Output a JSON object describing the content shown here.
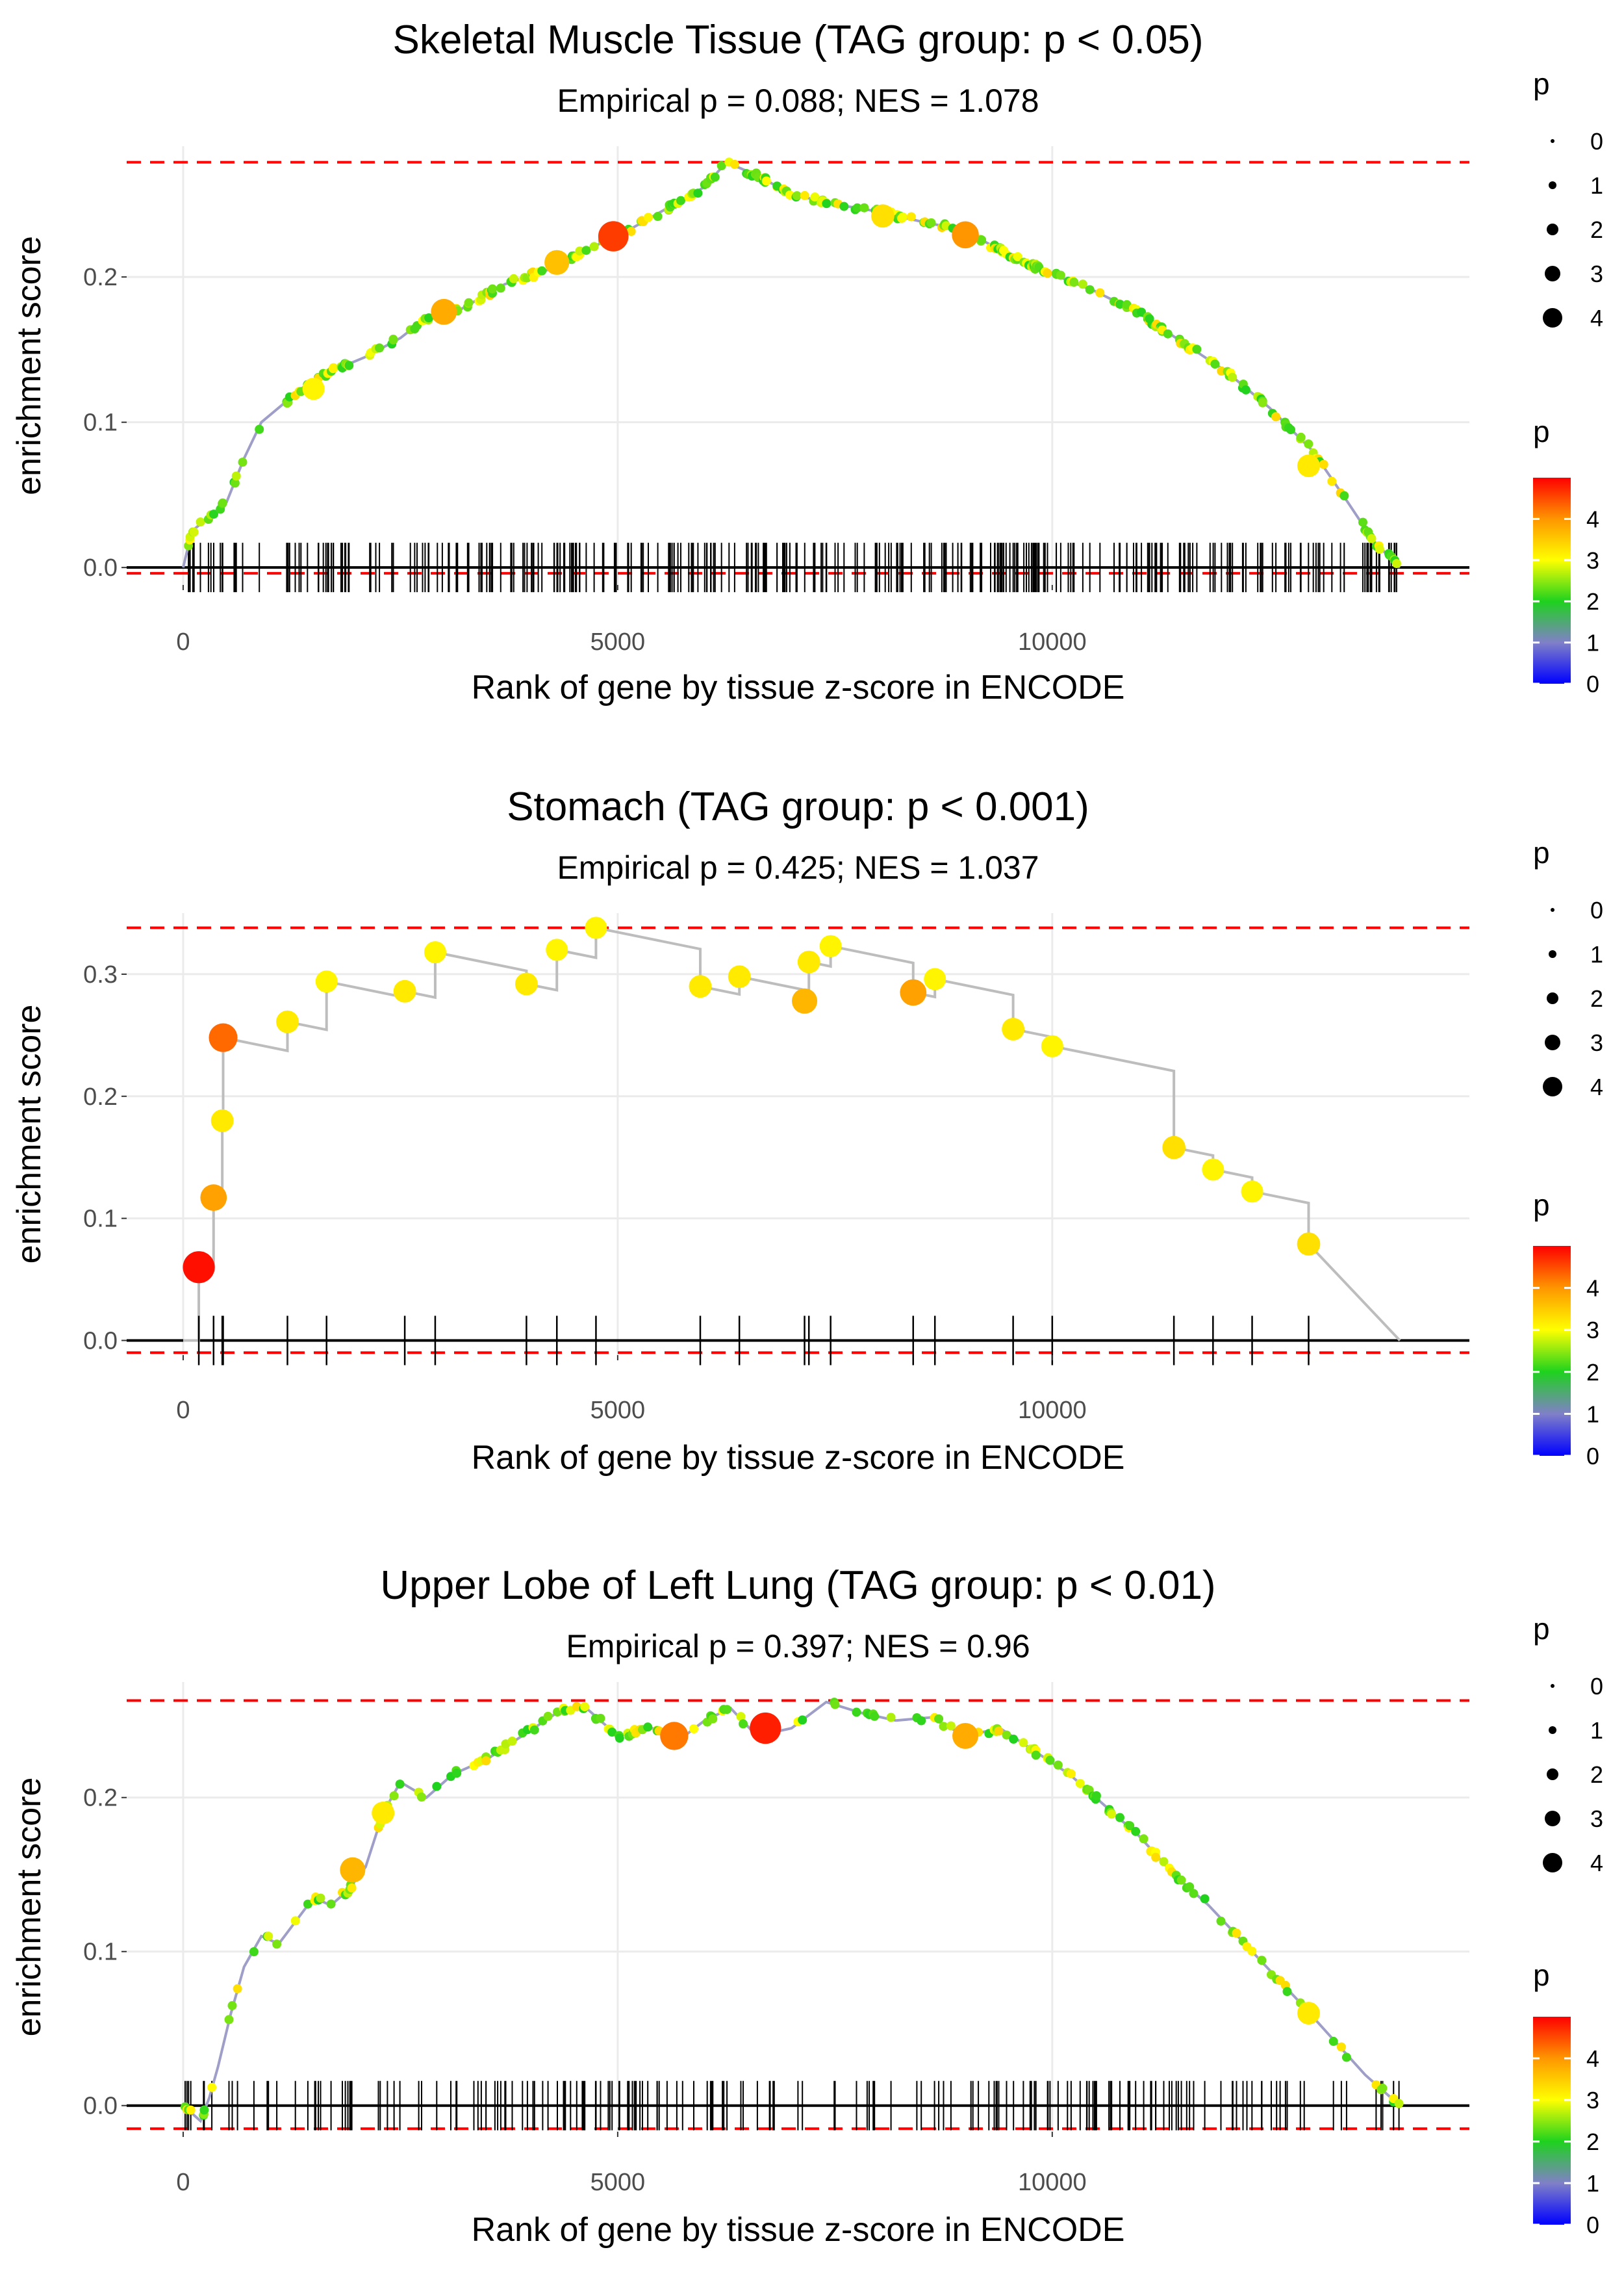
{
  "chart_data": [
    {
      "type": "line",
      "title": "Skeletal Muscle Tissue (TAG group: p < 0.05)",
      "subtitle": "Empirical p = 0.088; NES = 1.078",
      "xlabel": "Rank of gene by tissue z-score in ENCODE",
      "ylabel": "enrichment score",
      "xlim": [
        -650,
        14800
      ],
      "ylim": [
        -0.012,
        0.29
      ],
      "xticks": [
        0,
        5000,
        10000
      ],
      "xtick_labels": [
        "0",
        "5000",
        "10000"
      ],
      "yticks": [
        0.0,
        0.1,
        0.2
      ],
      "ytick_labels": [
        "0.0",
        "0.1",
        "0.2"
      ],
      "ref_lines": [
        0.279,
        -0.004
      ],
      "density": "dense",
      "curve": [
        [
          0,
          0
        ],
        [
          100,
          0.025
        ],
        [
          300,
          0.035
        ],
        [
          500,
          0.045
        ],
        [
          700,
          0.075
        ],
        [
          900,
          0.1
        ],
        [
          1100,
          0.11
        ],
        [
          1400,
          0.125
        ],
        [
          1700,
          0.135
        ],
        [
          2100,
          0.145
        ],
        [
          2500,
          0.158
        ],
        [
          2800,
          0.172
        ],
        [
          3200,
          0.178
        ],
        [
          3700,
          0.195
        ],
        [
          4200,
          0.205
        ],
        [
          4600,
          0.218
        ],
        [
          5000,
          0.228
        ],
        [
          5500,
          0.245
        ],
        [
          6000,
          0.262
        ],
        [
          6250,
          0.279
        ],
        [
          6600,
          0.27
        ],
        [
          7000,
          0.257
        ],
        [
          7500,
          0.25
        ],
        [
          8000,
          0.245
        ],
        [
          8500,
          0.238
        ],
        [
          9000,
          0.232
        ],
        [
          9500,
          0.215
        ],
        [
          10000,
          0.202
        ],
        [
          10500,
          0.19
        ],
        [
          11000,
          0.175
        ],
        [
          11500,
          0.155
        ],
        [
          12000,
          0.135
        ],
        [
          12500,
          0.11
        ],
        [
          13000,
          0.08
        ],
        [
          13400,
          0.045
        ],
        [
          13700,
          0.018
        ],
        [
          14000,
          0.0
        ]
      ],
      "highlights": [
        {
          "x": 4950,
          "y": 0.228,
          "p": 4.6
        },
        {
          "x": 9000,
          "y": 0.229,
          "p": 4.0
        },
        {
          "x": 3000,
          "y": 0.176,
          "p": 3.8
        },
        {
          "x": 4300,
          "y": 0.21,
          "p": 3.6
        },
        {
          "x": 8050,
          "y": 0.242,
          "p": 3.3
        },
        {
          "x": 1500,
          "y": 0.123,
          "p": 3.1
        },
        {
          "x": 12950,
          "y": 0.07,
          "p": 3.2
        }
      ],
      "legend_size_title": "p",
      "legend_size_labels": [
        "0",
        "1",
        "2",
        "3",
        "4"
      ],
      "legend_color_title": "p",
      "legend_color_labels": [
        "4",
        "3",
        "2",
        "1",
        "0"
      ]
    },
    {
      "type": "line",
      "title": "Stomach (TAG group: p < 0.001)",
      "subtitle": "Empirical p = 0.425; NES = 1.037",
      "xlabel": "Rank of gene by tissue z-score in ENCODE",
      "ylabel": "enrichment score",
      "xlim": [
        -650,
        14800
      ],
      "ylim": [
        -0.012,
        0.35
      ],
      "xticks": [
        0,
        5000,
        10000
      ],
      "xtick_labels": [
        "0",
        "5000",
        "10000"
      ],
      "yticks": [
        0.0,
        0.1,
        0.2,
        0.3
      ],
      "ytick_labels": [
        "0.0",
        "0.1",
        "0.2",
        "0.3"
      ],
      "ref_lines": [
        0.338,
        -0.01
      ],
      "density": "sparse",
      "points": [
        {
          "x": 180,
          "y": 0.06,
          "p": 4.9
        },
        {
          "x": 350,
          "y": 0.117,
          "p": 3.9
        },
        {
          "x": 450,
          "y": 0.18,
          "p": 3.2
        },
        {
          "x": 460,
          "y": 0.248,
          "p": 4.3
        },
        {
          "x": 1200,
          "y": 0.261,
          "p": 3.2
        },
        {
          "x": 1650,
          "y": 0.294,
          "p": 3.1
        },
        {
          "x": 2550,
          "y": 0.286,
          "p": 3.2
        },
        {
          "x": 2900,
          "y": 0.318,
          "p": 3.1
        },
        {
          "x": 3950,
          "y": 0.292,
          "p": 3.2
        },
        {
          "x": 4300,
          "y": 0.32,
          "p": 3.1
        },
        {
          "x": 4750,
          "y": 0.338,
          "p": 3.1
        },
        {
          "x": 5950,
          "y": 0.29,
          "p": 3.2
        },
        {
          "x": 6400,
          "y": 0.298,
          "p": 3.2
        },
        {
          "x": 7150,
          "y": 0.278,
          "p": 3.7
        },
        {
          "x": 7200,
          "y": 0.31,
          "p": 3.2
        },
        {
          "x": 7450,
          "y": 0.323,
          "p": 3.1
        },
        {
          "x": 8400,
          "y": 0.285,
          "p": 3.9
        },
        {
          "x": 8650,
          "y": 0.296,
          "p": 3.1
        },
        {
          "x": 9550,
          "y": 0.255,
          "p": 3.2
        },
        {
          "x": 10000,
          "y": 0.241,
          "p": 3.1
        },
        {
          "x": 11400,
          "y": 0.158,
          "p": 3.3
        },
        {
          "x": 11850,
          "y": 0.14,
          "p": 3.1
        },
        {
          "x": 12300,
          "y": 0.122,
          "p": 3.1
        },
        {
          "x": 12950,
          "y": 0.079,
          "p": 3.3
        }
      ],
      "end": [
        14000,
        0.0
      ],
      "legend_size_title": "p",
      "legend_size_labels": [
        "0",
        "1",
        "2",
        "3",
        "4"
      ],
      "legend_color_title": "p",
      "legend_color_labels": [
        "4",
        "3",
        "2",
        "1",
        "0"
      ]
    },
    {
      "type": "line",
      "title": "Upper Lobe of Left Lung (TAG group: p < 0.01)",
      "subtitle": "Empirical p = 0.397; NES = 0.96",
      "xlabel": "Rank of gene by tissue z-score in ENCODE",
      "ylabel": "enrichment score",
      "xlim": [
        -650,
        14800
      ],
      "ylim": [
        -0.017,
        0.275
      ],
      "xticks": [
        0,
        5000,
        10000
      ],
      "xtick_labels": [
        "0",
        "5000",
        "10000"
      ],
      "yticks": [
        0.0,
        0.1,
        0.2
      ],
      "ytick_labels": [
        "0.0",
        "0.1",
        "0.2"
      ],
      "ref_lines": [
        0.263,
        -0.015
      ],
      "density": "medium",
      "curve": [
        [
          0,
          0
        ],
        [
          200,
          -0.01
        ],
        [
          300,
          0.005
        ],
        [
          400,
          0.025
        ],
        [
          550,
          0.06
        ],
        [
          700,
          0.09
        ],
        [
          900,
          0.11
        ],
        [
          1100,
          0.105
        ],
        [
          1300,
          0.12
        ],
        [
          1500,
          0.135
        ],
        [
          1700,
          0.13
        ],
        [
          1900,
          0.14
        ],
        [
          2100,
          0.155
        ],
        [
          2300,
          0.19
        ],
        [
          2500,
          0.21
        ],
        [
          2800,
          0.2
        ],
        [
          3100,
          0.215
        ],
        [
          3500,
          0.225
        ],
        [
          3900,
          0.24
        ],
        [
          4300,
          0.255
        ],
        [
          4600,
          0.26
        ],
        [
          5000,
          0.24
        ],
        [
          5400,
          0.245
        ],
        [
          5700,
          0.237
        ],
        [
          6000,
          0.25
        ],
        [
          6300,
          0.258
        ],
        [
          6600,
          0.24
        ],
        [
          7000,
          0.245
        ],
        [
          7400,
          0.262
        ],
        [
          7800,
          0.255
        ],
        [
          8200,
          0.25
        ],
        [
          8600,
          0.252
        ],
        [
          9000,
          0.24
        ],
        [
          9400,
          0.245
        ],
        [
          9800,
          0.23
        ],
        [
          10200,
          0.215
        ],
        [
          10600,
          0.195
        ],
        [
          11000,
          0.175
        ],
        [
          11400,
          0.15
        ],
        [
          11800,
          0.13
        ],
        [
          12300,
          0.1
        ],
        [
          12800,
          0.07
        ],
        [
          13200,
          0.045
        ],
        [
          13600,
          0.02
        ],
        [
          14000,
          0.0
        ]
      ],
      "highlights": [
        {
          "x": 6700,
          "y": 0.245,
          "p": 4.8
        },
        {
          "x": 5650,
          "y": 0.24,
          "p": 4.2
        },
        {
          "x": 9000,
          "y": 0.24,
          "p": 3.8
        },
        {
          "x": 1950,
          "y": 0.153,
          "p": 3.7
        },
        {
          "x": 2300,
          "y": 0.19,
          "p": 3.2
        },
        {
          "x": 12950,
          "y": 0.06,
          "p": 3.2
        }
      ],
      "legend_size_title": "p",
      "legend_size_labels": [
        "0",
        "1",
        "2",
        "3",
        "4"
      ],
      "legend_color_title": "p",
      "legend_color_labels": [
        "4",
        "3",
        "2",
        "1",
        "0"
      ]
    }
  ]
}
